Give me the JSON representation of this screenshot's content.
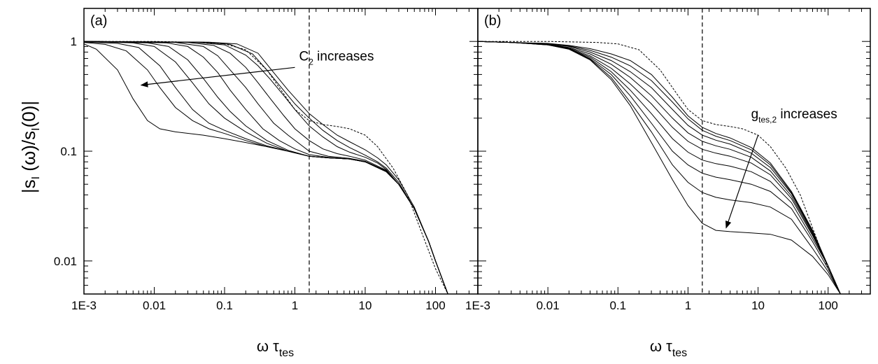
{
  "chart_data": [
    {
      "type": "line",
      "panel_label": "(a)",
      "xscale": "log",
      "yscale": "log",
      "xlim": [
        0.001,
        400
      ],
      "ylim": [
        0.005,
        2
      ],
      "xticks": [
        0.001,
        0.01,
        0.1,
        1,
        10,
        100
      ],
      "xtick_labels": [
        "1E-3",
        "0.01",
        "0.1",
        "1",
        "10",
        "100"
      ],
      "yticks": [
        0.01,
        0.1,
        1
      ],
      "ytick_labels": [
        "0.01",
        "0.1",
        "1"
      ],
      "xlabel": {
        "main": "ω τ",
        "sub": "tes"
      },
      "ylabel": {
        "p1": "|s",
        "s1": "I",
        "p2": " (ω)/s",
        "s2": "I",
        "p3": "(0)|"
      },
      "vline_x": 1.6,
      "reference_curve_style": "dotted",
      "reference_curve": {
        "x": [
          0.001,
          0.01,
          0.05,
          0.1,
          0.2,
          0.4,
          0.7,
          1,
          1.6,
          2.5,
          4,
          6,
          10,
          15,
          25,
          40,
          60,
          100,
          150
        ],
        "y": [
          1,
          1,
          0.98,
          0.95,
          0.84,
          0.55,
          0.33,
          0.24,
          0.19,
          0.175,
          0.168,
          0.16,
          0.14,
          0.11,
          0.07,
          0.04,
          0.02,
          0.0085,
          0.005
        ]
      },
      "series": [
        {
          "x": [
            0.001,
            0.0015,
            0.003,
            0.005,
            0.008,
            0.012,
            0.02,
            0.05,
            0.1,
            0.2,
            0.4,
            0.8,
            1.6,
            3,
            6,
            10,
            20,
            30,
            50,
            80,
            100,
            150
          ],
          "y": [
            0.95,
            0.85,
            0.55,
            0.3,
            0.19,
            0.16,
            0.15,
            0.14,
            0.13,
            0.12,
            0.11,
            0.1,
            0.09,
            0.087,
            0.085,
            0.08,
            0.065,
            0.05,
            0.03,
            0.015,
            0.01,
            0.005
          ]
        },
        {
          "x": [
            0.001,
            0.002,
            0.004,
            0.008,
            0.012,
            0.02,
            0.035,
            0.06,
            0.1,
            0.2,
            0.4,
            0.8,
            1.6,
            3,
            6,
            10,
            20,
            30,
            50,
            80,
            100,
            150
          ],
          "y": [
            0.98,
            0.94,
            0.82,
            0.55,
            0.38,
            0.25,
            0.19,
            0.16,
            0.145,
            0.125,
            0.11,
            0.1,
            0.09,
            0.087,
            0.085,
            0.08,
            0.065,
            0.05,
            0.03,
            0.015,
            0.01,
            0.005
          ]
        },
        {
          "x": [
            0.001,
            0.003,
            0.006,
            0.012,
            0.02,
            0.035,
            0.06,
            0.1,
            0.2,
            0.4,
            0.8,
            1.6,
            3,
            6,
            10,
            20,
            30,
            50,
            80,
            100,
            150
          ],
          "y": [
            0.99,
            0.96,
            0.88,
            0.6,
            0.38,
            0.24,
            0.18,
            0.155,
            0.13,
            0.112,
            0.1,
            0.09,
            0.087,
            0.085,
            0.08,
            0.065,
            0.05,
            0.03,
            0.015,
            0.01,
            0.005
          ]
        },
        {
          "x": [
            0.001,
            0.005,
            0.01,
            0.02,
            0.035,
            0.06,
            0.1,
            0.2,
            0.4,
            0.8,
            1.6,
            3,
            6,
            10,
            20,
            30,
            50,
            80,
            100,
            150
          ],
          "y": [
            1,
            0.97,
            0.9,
            0.65,
            0.42,
            0.27,
            0.2,
            0.15,
            0.118,
            0.1,
            0.09,
            0.087,
            0.085,
            0.08,
            0.065,
            0.05,
            0.03,
            0.015,
            0.01,
            0.005
          ]
        },
        {
          "x": [
            0.001,
            0.008,
            0.016,
            0.03,
            0.05,
            0.08,
            0.12,
            0.2,
            0.4,
            0.8,
            1.6,
            3,
            6,
            10,
            20,
            30,
            50,
            80,
            100,
            150
          ],
          "y": [
            1,
            0.97,
            0.9,
            0.68,
            0.46,
            0.31,
            0.23,
            0.17,
            0.125,
            0.102,
            0.09,
            0.087,
            0.085,
            0.08,
            0.065,
            0.05,
            0.03,
            0.015,
            0.01,
            0.005
          ]
        },
        {
          "x": [
            0.001,
            0.015,
            0.03,
            0.05,
            0.08,
            0.12,
            0.2,
            0.35,
            0.6,
            1,
            1.6,
            3,
            6,
            10,
            20,
            30,
            50,
            80,
            100,
            150
          ],
          "y": [
            1,
            0.97,
            0.9,
            0.72,
            0.52,
            0.36,
            0.24,
            0.16,
            0.125,
            0.105,
            0.093,
            0.088,
            0.085,
            0.08,
            0.065,
            0.05,
            0.03,
            0.015,
            0.01,
            0.005
          ]
        },
        {
          "x": [
            0.001,
            0.02,
            0.05,
            0.08,
            0.12,
            0.2,
            0.3,
            0.5,
            0.8,
            1.2,
            1.6,
            3,
            6,
            10,
            20,
            30,
            50,
            80,
            100,
            150
          ],
          "y": [
            1,
            0.98,
            0.9,
            0.74,
            0.55,
            0.38,
            0.27,
            0.18,
            0.14,
            0.115,
            0.1,
            0.09,
            0.086,
            0.081,
            0.066,
            0.05,
            0.03,
            0.015,
            0.01,
            0.005
          ]
        },
        {
          "x": [
            0.001,
            0.03,
            0.07,
            0.12,
            0.2,
            0.3,
            0.45,
            0.7,
            1,
            1.6,
            2.5,
            4,
            6,
            10,
            20,
            30,
            50,
            80,
            100,
            150
          ],
          "y": [
            1,
            0.98,
            0.92,
            0.78,
            0.58,
            0.42,
            0.3,
            0.21,
            0.16,
            0.125,
            0.105,
            0.095,
            0.09,
            0.083,
            0.067,
            0.05,
            0.03,
            0.015,
            0.01,
            0.005
          ]
        },
        {
          "x": [
            0.001,
            0.04,
            0.1,
            0.2,
            0.3,
            0.45,
            0.7,
            1,
            1.6,
            2.5,
            4,
            6,
            10,
            15,
            20,
            30,
            50,
            80,
            100,
            150
          ],
          "y": [
            1,
            0.98,
            0.93,
            0.75,
            0.6,
            0.45,
            0.32,
            0.24,
            0.17,
            0.135,
            0.11,
            0.098,
            0.088,
            0.078,
            0.068,
            0.05,
            0.03,
            0.015,
            0.01,
            0.005
          ]
        },
        {
          "x": [
            0.001,
            0.05,
            0.12,
            0.25,
            0.4,
            0.6,
            1,
            1.6,
            2.5,
            4,
            6,
            10,
            15,
            20,
            30,
            50,
            80,
            100,
            150
          ],
          "y": [
            1,
            0.985,
            0.94,
            0.77,
            0.55,
            0.4,
            0.27,
            0.2,
            0.155,
            0.125,
            0.108,
            0.092,
            0.08,
            0.07,
            0.052,
            0.03,
            0.015,
            0.01,
            0.005
          ]
        },
        {
          "x": [
            0.001,
            0.06,
            0.15,
            0.3,
            0.5,
            0.8,
            1.2,
            1.6,
            2.5,
            4,
            6,
            10,
            15,
            20,
            30,
            50,
            80,
            100,
            150
          ],
          "y": [
            1,
            0.985,
            0.95,
            0.78,
            0.52,
            0.36,
            0.27,
            0.22,
            0.175,
            0.14,
            0.122,
            0.103,
            0.087,
            0.075,
            0.055,
            0.031,
            0.015,
            0.01,
            0.005
          ]
        }
      ],
      "annotation": {
        "text_main": "C",
        "text_sub": "2",
        "text_rest": " increases",
        "arrow_from": [
          1.0,
          0.58
        ],
        "arrow_to": [
          0.0065,
          0.4
        ]
      }
    },
    {
      "type": "line",
      "panel_label": "(b)",
      "xscale": "log",
      "yscale": "log",
      "xlim": [
        0.001,
        400
      ],
      "ylim": [
        0.005,
        2
      ],
      "xticks": [
        0.001,
        0.01,
        0.1,
        1,
        10,
        100
      ],
      "xtick_labels": [
        "1E-3",
        "0.01",
        "0.1",
        "1",
        "10",
        "100"
      ],
      "xlabel": {
        "main": "ω τ",
        "sub": "tes"
      },
      "vline_x": 1.6,
      "reference_curve_style": "dotted",
      "reference_curve": {
        "x": [
          0.001,
          0.01,
          0.05,
          0.1,
          0.2,
          0.4,
          0.7,
          1,
          1.6,
          2.5,
          4,
          6,
          10,
          15,
          25,
          40,
          60,
          100,
          150
        ],
        "y": [
          1,
          1,
          0.98,
          0.95,
          0.84,
          0.55,
          0.33,
          0.24,
          0.19,
          0.175,
          0.168,
          0.16,
          0.14,
          0.11,
          0.07,
          0.04,
          0.02,
          0.0085,
          0.005
        ]
      },
      "series": [
        {
          "x": [
            0.001,
            0.003,
            0.01,
            0.02,
            0.04,
            0.08,
            0.15,
            0.3,
            0.6,
            1,
            1.6,
            2.5,
            4,
            8,
            15,
            30,
            60,
            100,
            150
          ],
          "y": [
            1,
            0.98,
            0.93,
            0.85,
            0.68,
            0.45,
            0.26,
            0.12,
            0.055,
            0.032,
            0.022,
            0.019,
            0.0185,
            0.018,
            0.0175,
            0.0155,
            0.011,
            0.0075,
            0.005
          ]
        },
        {
          "x": [
            0.001,
            0.003,
            0.01,
            0.02,
            0.04,
            0.08,
            0.15,
            0.3,
            0.6,
            1,
            1.6,
            2.5,
            4,
            8,
            15,
            30,
            60,
            100,
            150
          ],
          "y": [
            1,
            0.98,
            0.93,
            0.85,
            0.69,
            0.47,
            0.28,
            0.15,
            0.075,
            0.052,
            0.042,
            0.038,
            0.036,
            0.034,
            0.031,
            0.024,
            0.013,
            0.008,
            0.005
          ]
        },
        {
          "x": [
            0.001,
            0.003,
            0.01,
            0.02,
            0.04,
            0.08,
            0.15,
            0.3,
            0.6,
            1,
            1.6,
            2.5,
            4,
            8,
            15,
            30,
            60,
            100,
            150
          ],
          "y": [
            1,
            0.98,
            0.93,
            0.86,
            0.7,
            0.5,
            0.32,
            0.18,
            0.1,
            0.075,
            0.063,
            0.058,
            0.055,
            0.05,
            0.043,
            0.03,
            0.015,
            0.0085,
            0.005
          ]
        },
        {
          "x": [
            0.001,
            0.003,
            0.01,
            0.02,
            0.04,
            0.08,
            0.15,
            0.3,
            0.6,
            1,
            1.6,
            2.5,
            4,
            8,
            15,
            30,
            60,
            100,
            150
          ],
          "y": [
            1,
            0.98,
            0.94,
            0.86,
            0.72,
            0.53,
            0.36,
            0.22,
            0.13,
            0.098,
            0.083,
            0.077,
            0.073,
            0.065,
            0.053,
            0.034,
            0.016,
            0.009,
            0.005
          ]
        },
        {
          "x": [
            0.001,
            0.003,
            0.01,
            0.02,
            0.04,
            0.08,
            0.15,
            0.3,
            0.6,
            1,
            1.6,
            2.5,
            4,
            8,
            15,
            30,
            60,
            100,
            150
          ],
          "y": [
            1,
            0.98,
            0.94,
            0.87,
            0.74,
            0.57,
            0.41,
            0.27,
            0.165,
            0.123,
            0.104,
            0.096,
            0.09,
            0.078,
            0.061,
            0.037,
            0.017,
            0.009,
            0.005
          ]
        },
        {
          "x": [
            0.001,
            0.003,
            0.01,
            0.02,
            0.04,
            0.08,
            0.15,
            0.3,
            0.6,
            1,
            1.6,
            2.5,
            4,
            8,
            15,
            30,
            60,
            100,
            150
          ],
          "y": [
            1,
            0.98,
            0.94,
            0.88,
            0.77,
            0.62,
            0.47,
            0.32,
            0.2,
            0.147,
            0.123,
            0.112,
            0.104,
            0.088,
            0.066,
            0.039,
            0.0175,
            0.009,
            0.005
          ]
        },
        {
          "x": [
            0.001,
            0.003,
            0.01,
            0.02,
            0.04,
            0.08,
            0.15,
            0.3,
            0.6,
            1,
            1.6,
            2.5,
            4,
            8,
            15,
            30,
            60,
            100,
            150
          ],
          "y": [
            1,
            0.98,
            0.95,
            0.9,
            0.8,
            0.67,
            0.53,
            0.38,
            0.24,
            0.172,
            0.14,
            0.126,
            0.116,
            0.096,
            0.071,
            0.041,
            0.018,
            0.009,
            0.005
          ]
        },
        {
          "x": [
            0.001,
            0.003,
            0.01,
            0.02,
            0.04,
            0.08,
            0.15,
            0.3,
            0.6,
            1,
            1.6,
            2.5,
            4,
            8,
            15,
            30,
            60,
            100,
            150
          ],
          "y": [
            1,
            0.98,
            0.95,
            0.91,
            0.83,
            0.72,
            0.6,
            0.44,
            0.28,
            0.197,
            0.155,
            0.137,
            0.125,
            0.103,
            0.075,
            0.042,
            0.0185,
            0.009,
            0.005
          ]
        },
        {
          "x": [
            0.001,
            0.003,
            0.01,
            0.02,
            0.04,
            0.08,
            0.15,
            0.3,
            0.6,
            1,
            1.6,
            2.5,
            4,
            8,
            15,
            30,
            60,
            100,
            150
          ],
          "y": [
            1,
            0.98,
            0.96,
            0.92,
            0.86,
            0.77,
            0.67,
            0.5,
            0.31,
            0.21,
            0.165,
            0.145,
            0.132,
            0.108,
            0.078,
            0.043,
            0.019,
            0.009,
            0.005
          ]
        }
      ],
      "annotation": {
        "text_main": "g",
        "text_sub": "tes,2",
        "text_rest": " increases",
        "arrow_from": [
          10,
          0.14
        ],
        "arrow_to": [
          3.5,
          0.02
        ]
      }
    }
  ]
}
